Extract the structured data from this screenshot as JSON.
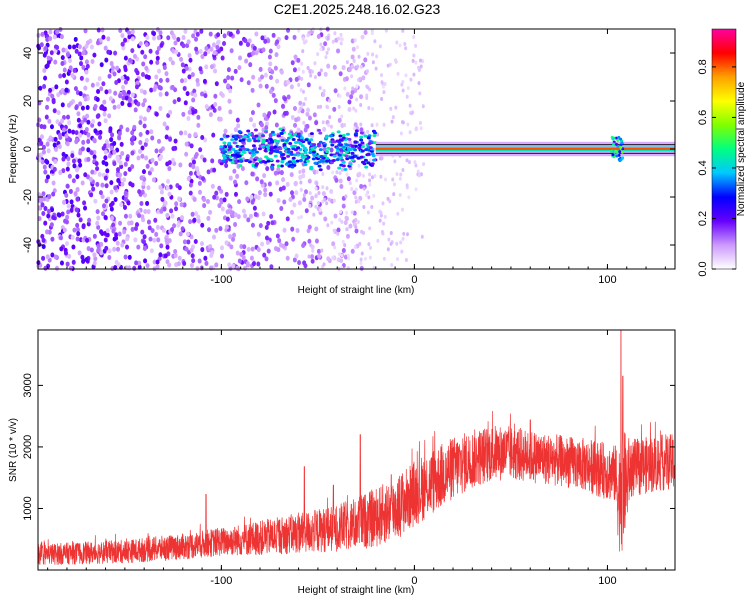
{
  "title": "C2E1.2025.248.16.02.G23",
  "chart_data": [
    {
      "type": "heatmap",
      "xlabel": "Height of straight line (km)",
      "ylabel": "Frequency (Hz)",
      "xlim": [
        -195,
        135
      ],
      "ylim": [
        -50,
        50
      ],
      "x_ticks": [
        -100,
        0,
        100
      ],
      "x_tick_labels": [
        "-100",
        "0",
        "100"
      ],
      "y_ticks": [
        -40,
        -20,
        0,
        20,
        40
      ],
      "y_tick_labels": [
        "-40",
        "-20",
        "0",
        "20",
        "40"
      ],
      "colorbar": {
        "label": "Normalized spectral amplitude",
        "range": [
          0,
          0.95
        ],
        "ticks": [
          0,
          0.2,
          0.4,
          0.6,
          0.8
        ],
        "tick_labels": [
          "0.0",
          "0.2",
          "0.4",
          "0.6",
          "0.8"
        ],
        "colors": [
          "#ffffff",
          "#cc99ff",
          "#6600ff",
          "#0000ff",
          "#00c8ff",
          "#00ff80",
          "#80ff00",
          "#ffff00",
          "#ffa000",
          "#ff0000",
          "#ff00a0"
        ]
      },
      "features": {
        "noise_region_x": [
          -195,
          -25
        ],
        "sparse_noise_x": [
          -60,
          5
        ],
        "dense_band_x": [
          -100,
          -20
        ],
        "carrier_line_x": [
          -20,
          135
        ],
        "carrier_frequency_hz": 0,
        "carrier_amplitude": 0.85,
        "disturbance_x": 105
      }
    },
    {
      "type": "line",
      "xlabel": "Height of straight line (km)",
      "ylabel": "SNR (10 * v/v)",
      "xlim": [
        -195,
        135
      ],
      "ylim": [
        0,
        3900
      ],
      "x_ticks": [
        -100,
        0,
        100
      ],
      "x_tick_labels": [
        "-100",
        "0",
        "100"
      ],
      "y_ticks": [
        1000,
        2000,
        3000
      ],
      "y_tick_labels": [
        "1000",
        "2000",
        "3000"
      ],
      "series": [
        {
          "name": "SNR",
          "color": "#ee3333",
          "envelope_x": [
            -195,
            -150,
            -120,
            -100,
            -80,
            -60,
            -40,
            -30,
            -20,
            -10,
            0,
            10,
            20,
            30,
            40,
            50,
            60,
            70,
            80,
            90,
            100,
            104,
            106,
            108,
            112,
            120,
            130,
            135
          ],
          "envelope_mean": [
            250,
            300,
            380,
            460,
            520,
            600,
            680,
            760,
            850,
            1000,
            1250,
            1450,
            1650,
            1800,
            1900,
            1900,
            1850,
            1800,
            1750,
            1700,
            1600,
            1550,
            1200,
            1300,
            1650,
            1700,
            1750,
            1750
          ],
          "envelope_spread": [
            170,
            190,
            210,
            230,
            280,
            330,
            380,
            430,
            480,
            520,
            540,
            540,
            520,
            480,
            460,
            440,
            430,
            420,
            420,
            440,
            460,
            480,
            900,
            1000,
            480,
            460,
            460,
            460
          ],
          "spikes": [
            [
              -108,
              1230
            ],
            [
              -57,
              1680
            ],
            [
              -42,
              1380
            ],
            [
              -28,
              2200
            ],
            [
              -12,
              1550
            ],
            [
              -3,
              1400
            ],
            [
              60,
              2440
            ],
            [
              107,
              3900
            ],
            [
              108,
              3150
            ]
          ]
        }
      ]
    }
  ]
}
